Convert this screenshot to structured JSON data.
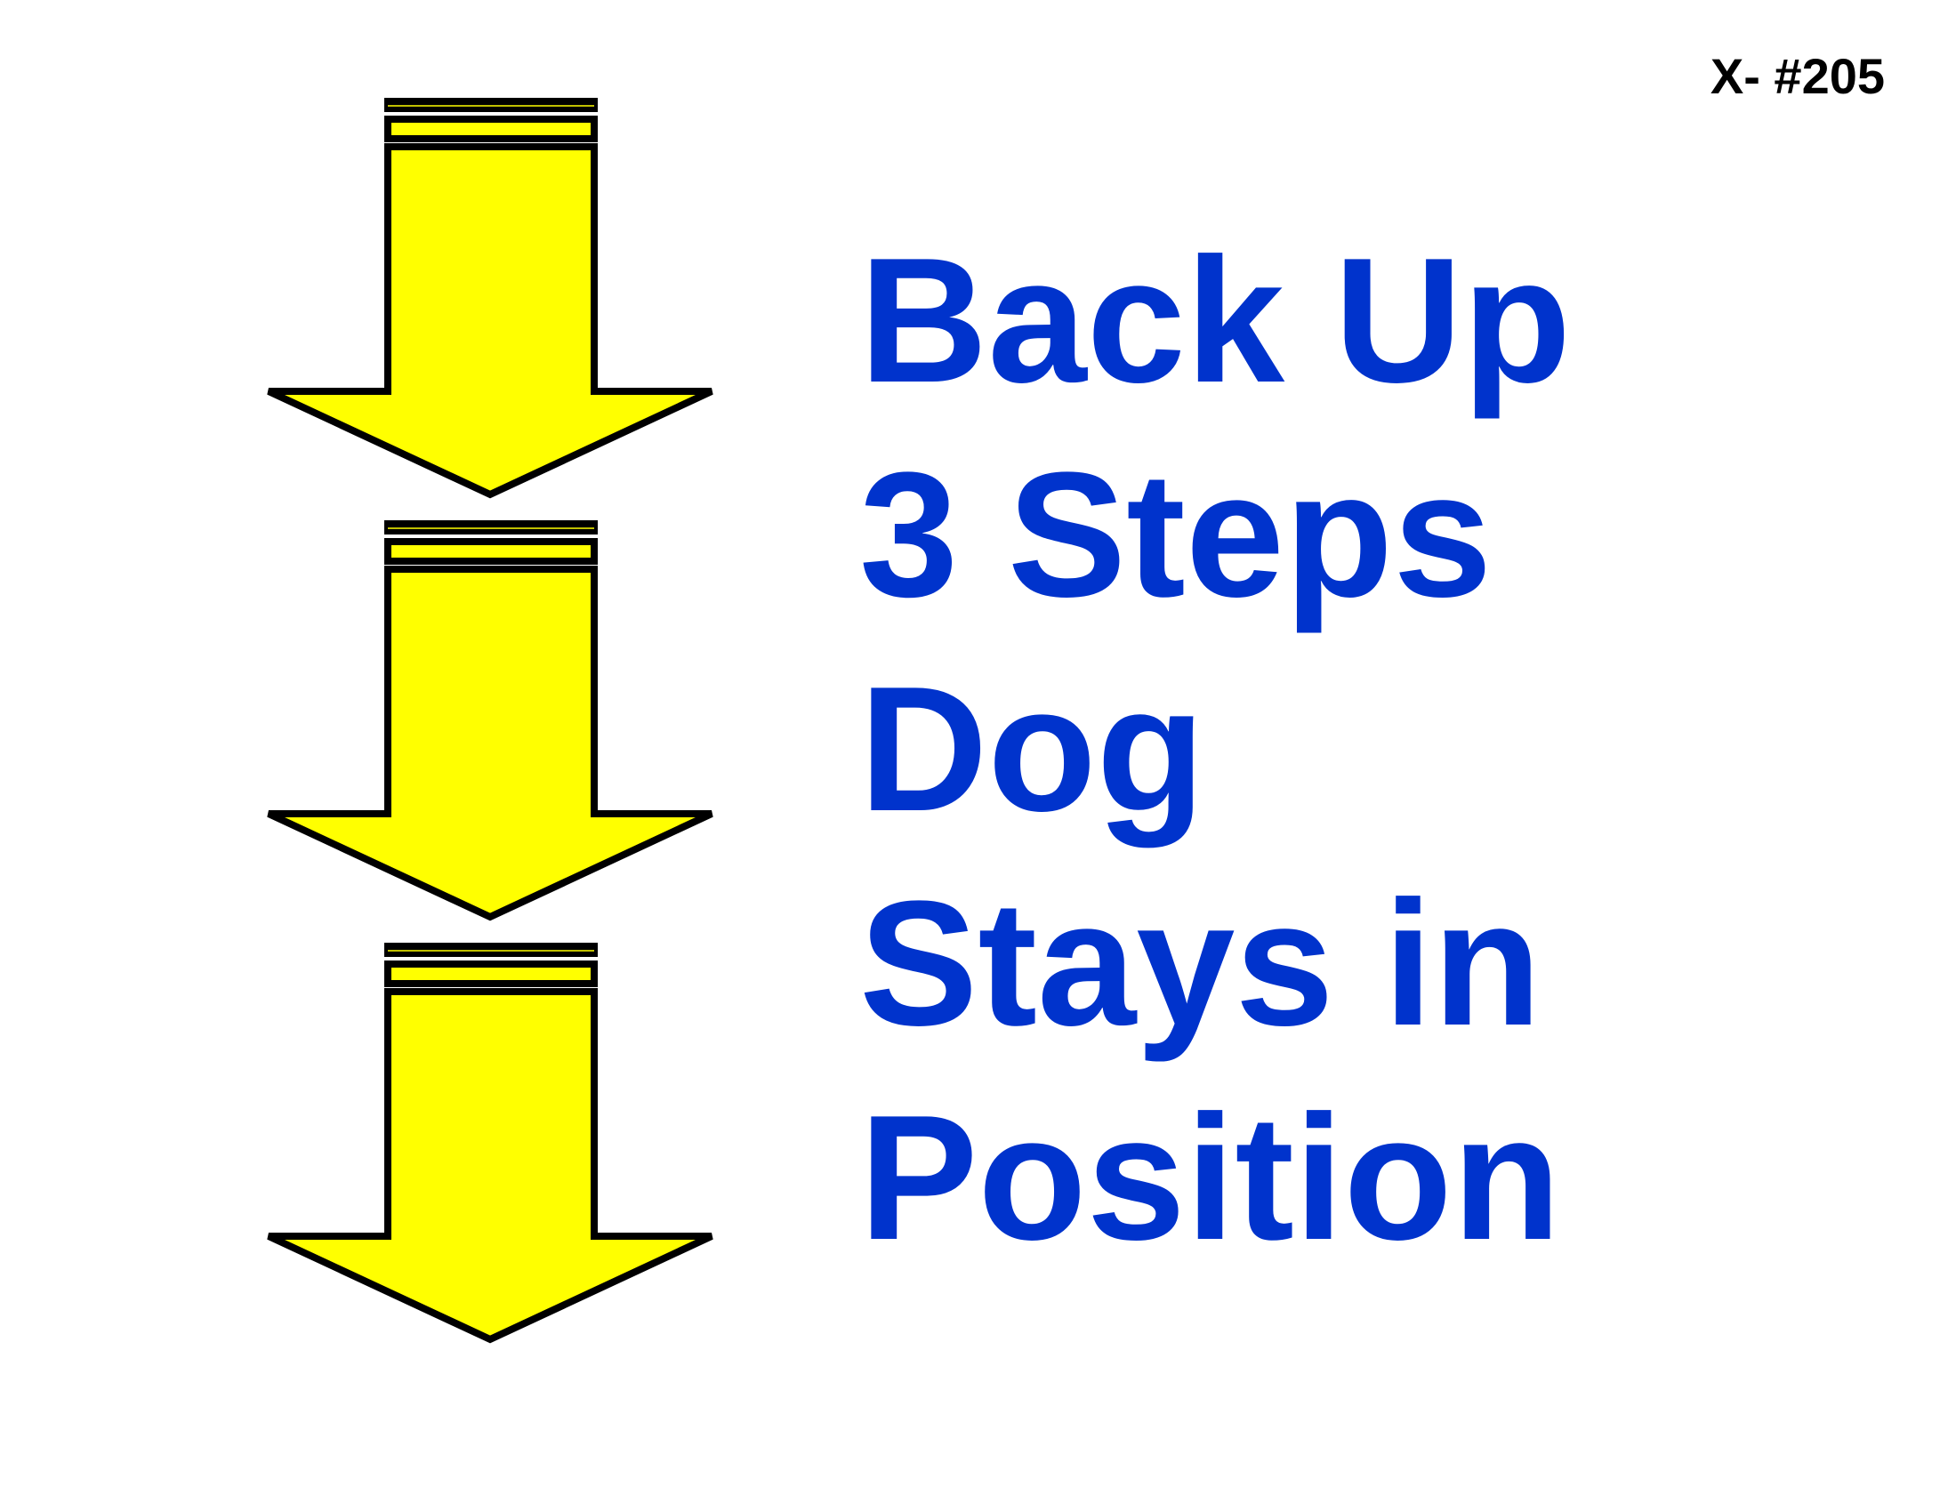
{
  "sign": {
    "number": "X- #205",
    "instruction_lines": [
      "Back Up",
      "3 Steps",
      "Dog",
      "Stays in",
      "Position"
    ]
  },
  "colors": {
    "arrow_fill": "#ffff00",
    "arrow_outline": "#000000",
    "text": "#0033cc"
  },
  "icons": [
    "down-arrow-icon",
    "down-arrow-icon",
    "down-arrow-icon"
  ]
}
